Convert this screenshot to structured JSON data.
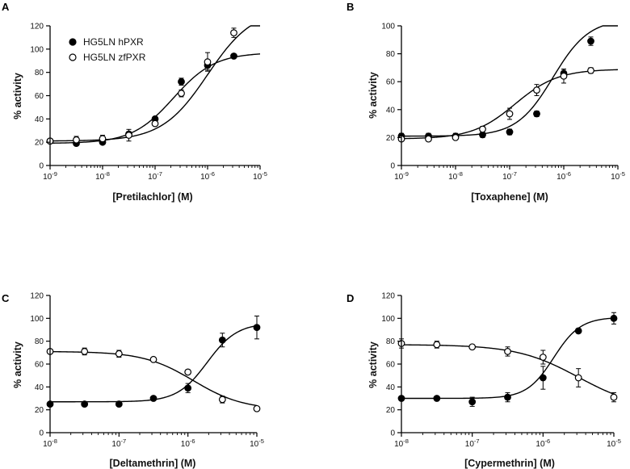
{
  "legend": {
    "hpxr": "HG5LN hPXR",
    "zfpxr": "HG5LN zfPXR"
  },
  "chart_data": [
    {
      "type": "scatter",
      "panel": "A",
      "xlabel": "[Pretilachlor] (M)",
      "ylabel": "% activity",
      "xscale": "log",
      "xlim_exp": [
        -9,
        -5
      ],
      "ylim": [
        0,
        120
      ],
      "yticks": [
        "0",
        "20",
        "40",
        "60",
        "80",
        "100",
        "120"
      ],
      "legend_position": "top-left",
      "series": [
        {
          "name": "HG5LN hPXR",
          "marker": "filled-circle",
          "x_exp": [
            -9,
            -8.5,
            -8,
            -7.5,
            -7,
            -6.5,
            -6,
            -5.5
          ],
          "y": [
            21,
            19,
            20,
            27,
            40,
            72,
            86,
            94
          ],
          "err": [
            1,
            1,
            1,
            2,
            2,
            3,
            4,
            1
          ],
          "fit": {
            "bottom": 19,
            "top": 97,
            "logec50": -6.65,
            "hill": 1.1
          }
        },
        {
          "name": "HG5LN zfPXR",
          "marker": "open-circle",
          "x_exp": [
            -9,
            -8.5,
            -8,
            -7.5,
            -7,
            -6.5,
            -6,
            -5.5
          ],
          "y": [
            21,
            22,
            23,
            26,
            36,
            62,
            89,
            114
          ],
          "err": [
            1,
            3,
            3,
            5,
            2,
            3,
            8,
            4
          ],
          "fit": {
            "bottom": 21,
            "top": 135,
            "logec50": -6.0,
            "hill": 1.0
          }
        }
      ]
    },
    {
      "type": "scatter",
      "panel": "B",
      "xlabel": "[Toxaphene] (M)",
      "ylabel": "% activity",
      "xscale": "log",
      "xlim_exp": [
        -9,
        -5
      ],
      "ylim": [
        0,
        100
      ],
      "yticks": [
        "0",
        "20",
        "40",
        "60",
        "80",
        "100"
      ],
      "series": [
        {
          "name": "HG5LN hPXR",
          "marker": "filled-circle",
          "x_exp": [
            -9,
            -8.5,
            -8,
            -7.5,
            -7,
            -6.5,
            -6,
            -5.5
          ],
          "y": [
            21,
            21,
            21,
            22,
            24,
            37,
            66,
            89
          ],
          "err": [
            2,
            2,
            2,
            2,
            2,
            2,
            3,
            3
          ],
          "fit": {
            "bottom": 21,
            "top": 105,
            "logec50": -6.2,
            "hill": 1.3
          }
        },
        {
          "name": "HG5LN zfPXR",
          "marker": "open-circle",
          "x_exp": [
            -9,
            -8.5,
            -8,
            -7.5,
            -7,
            -6.5,
            -6,
            -5.5
          ],
          "y": [
            19,
            19,
            20,
            26,
            37,
            54,
            64,
            68
          ],
          "err": [
            1,
            1,
            1,
            2,
            4,
            4,
            5,
            2
          ],
          "fit": {
            "bottom": 19,
            "top": 69,
            "logec50": -6.9,
            "hill": 1.1
          }
        }
      ]
    },
    {
      "type": "scatter",
      "panel": "C",
      "xlabel": "[Deltamethrin] (M)",
      "ylabel": "% activity",
      "xscale": "log",
      "xlim_exp": [
        -8,
        -5
      ],
      "ylim": [
        0,
        120
      ],
      "yticks": [
        "0",
        "20",
        "40",
        "60",
        "80",
        "100",
        "120"
      ],
      "series": [
        {
          "name": "HG5LN hPXR",
          "marker": "filled-circle",
          "x_exp": [
            -8,
            -7.5,
            -7,
            -6.5,
            -6,
            -5.5,
            -5
          ],
          "y": [
            25,
            25,
            25,
            30,
            39,
            81,
            92
          ],
          "err": [
            1,
            1,
            1,
            1,
            4,
            6,
            10
          ],
          "fit": {
            "bottom": 27,
            "top": 96,
            "logec50": -5.72,
            "hill": 2.0
          }
        },
        {
          "name": "HG5LN zfPXR",
          "marker": "open-circle",
          "x_exp": [
            -8,
            -7.5,
            -7,
            -6.5,
            -6,
            -5.5,
            -5
          ],
          "y": [
            71,
            71,
            69,
            64,
            53,
            29,
            21
          ],
          "err": [
            2,
            3,
            3,
            1,
            2,
            3,
            1
          ],
          "fit": {
            "bottom": 20,
            "top": 71,
            "logec50": -5.92,
            "hill": -1.2
          }
        }
      ]
    },
    {
      "type": "scatter",
      "panel": "D",
      "xlabel": "[Cypermethrin] (M)",
      "ylabel": "% activity",
      "xscale": "log",
      "xlim_exp": [
        -8,
        -5
      ],
      "ylim": [
        0,
        120
      ],
      "yticks": [
        "0",
        "20",
        "40",
        "60",
        "80",
        "100",
        "120"
      ],
      "series": [
        {
          "name": "HG5LN hPXR",
          "marker": "filled-circle",
          "x_exp": [
            -8,
            -7.5,
            -7,
            -6.5,
            -6,
            -5.5,
            -5
          ],
          "y": [
            30,
            30,
            27,
            31,
            48,
            89,
            100
          ],
          "err": [
            2,
            1,
            4,
            4,
            10,
            2,
            5
          ],
          "fit": {
            "bottom": 30,
            "top": 101,
            "logec50": -5.85,
            "hill": 2.3
          }
        },
        {
          "name": "HG5LN zfPXR",
          "marker": "open-circle",
          "x_exp": [
            -8,
            -7.5,
            -7,
            -6.5,
            -6,
            -5.5,
            -5
          ],
          "y": [
            78,
            77,
            75,
            71,
            66,
            48,
            31
          ],
          "err": [
            4,
            3,
            1,
            4,
            6,
            8,
            4
          ],
          "fit": {
            "bottom": 20,
            "top": 77,
            "logec50": -5.5,
            "hill": -1.0
          }
        }
      ]
    }
  ]
}
